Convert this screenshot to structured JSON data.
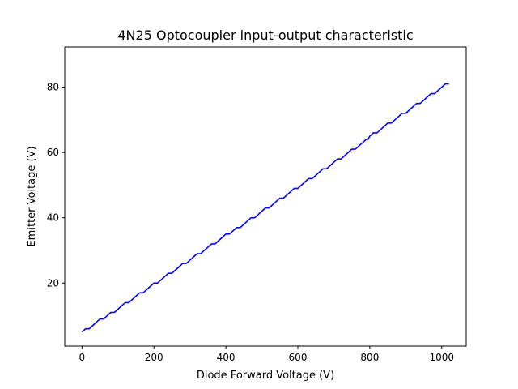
{
  "chart_data": {
    "type": "line",
    "title": "4N25 Optocoupler input-output characteristic",
    "xlabel": "Diode Forward Voltage (V)",
    "ylabel": "Emitter Voltage (V)",
    "xlim": [
      -48,
      1068
    ],
    "ylim": [
      0.7,
      92.3
    ],
    "xticks": [
      0,
      200,
      400,
      600,
      800,
      1000
    ],
    "yticks": [
      20,
      40,
      60,
      80
    ],
    "grid": false,
    "series": [
      {
        "color": "#0000ff",
        "x": [
          0,
          10,
          20,
          30,
          40,
          50,
          60,
          70,
          80,
          90,
          100,
          110,
          120,
          130,
          140,
          150,
          160,
          170,
          180,
          190,
          200,
          210,
          220,
          230,
          240,
          250,
          260,
          270,
          280,
          290,
          300,
          310,
          320,
          330,
          340,
          350,
          360,
          370,
          380,
          390,
          400,
          410,
          420,
          430,
          440,
          450,
          460,
          470,
          480,
          490,
          500,
          510,
          520,
          530,
          540,
          550,
          560,
          570,
          580,
          590,
          600,
          610,
          620,
          630,
          640,
          650,
          660,
          670,
          680,
          690,
          700,
          710,
          720,
          730,
          740,
          750,
          760,
          770,
          780,
          790,
          795,
          800,
          810,
          820,
          830,
          840,
          850,
          860,
          870,
          880,
          890,
          900,
          910,
          920,
          930,
          940,
          950,
          960,
          970,
          980,
          990,
          1000,
          1010,
          1020
        ],
        "y": [
          5,
          6,
          6,
          7,
          8,
          9,
          9,
          10,
          11,
          11,
          12,
          13,
          14,
          14,
          15,
          16,
          17,
          17,
          18,
          19,
          20,
          20,
          21,
          22,
          23,
          23,
          24,
          25,
          26,
          26,
          27,
          28,
          29,
          29,
          30,
          31,
          32,
          32,
          33,
          34,
          35,
          35,
          36,
          37,
          37,
          38,
          39,
          40,
          40,
          41,
          42,
          43,
          43,
          44,
          45,
          46,
          46,
          47,
          48,
          49,
          49,
          50,
          51,
          52,
          52,
          53,
          54,
          55,
          55,
          56,
          57,
          58,
          58,
          59,
          60,
          61,
          61,
          62,
          63,
          64,
          64,
          65,
          66,
          66,
          67,
          68,
          69,
          69,
          70,
          71,
          72,
          72,
          73,
          74,
          75,
          75,
          76,
          77,
          78,
          78,
          79,
          80,
          81,
          81
        ]
      }
    ]
  }
}
